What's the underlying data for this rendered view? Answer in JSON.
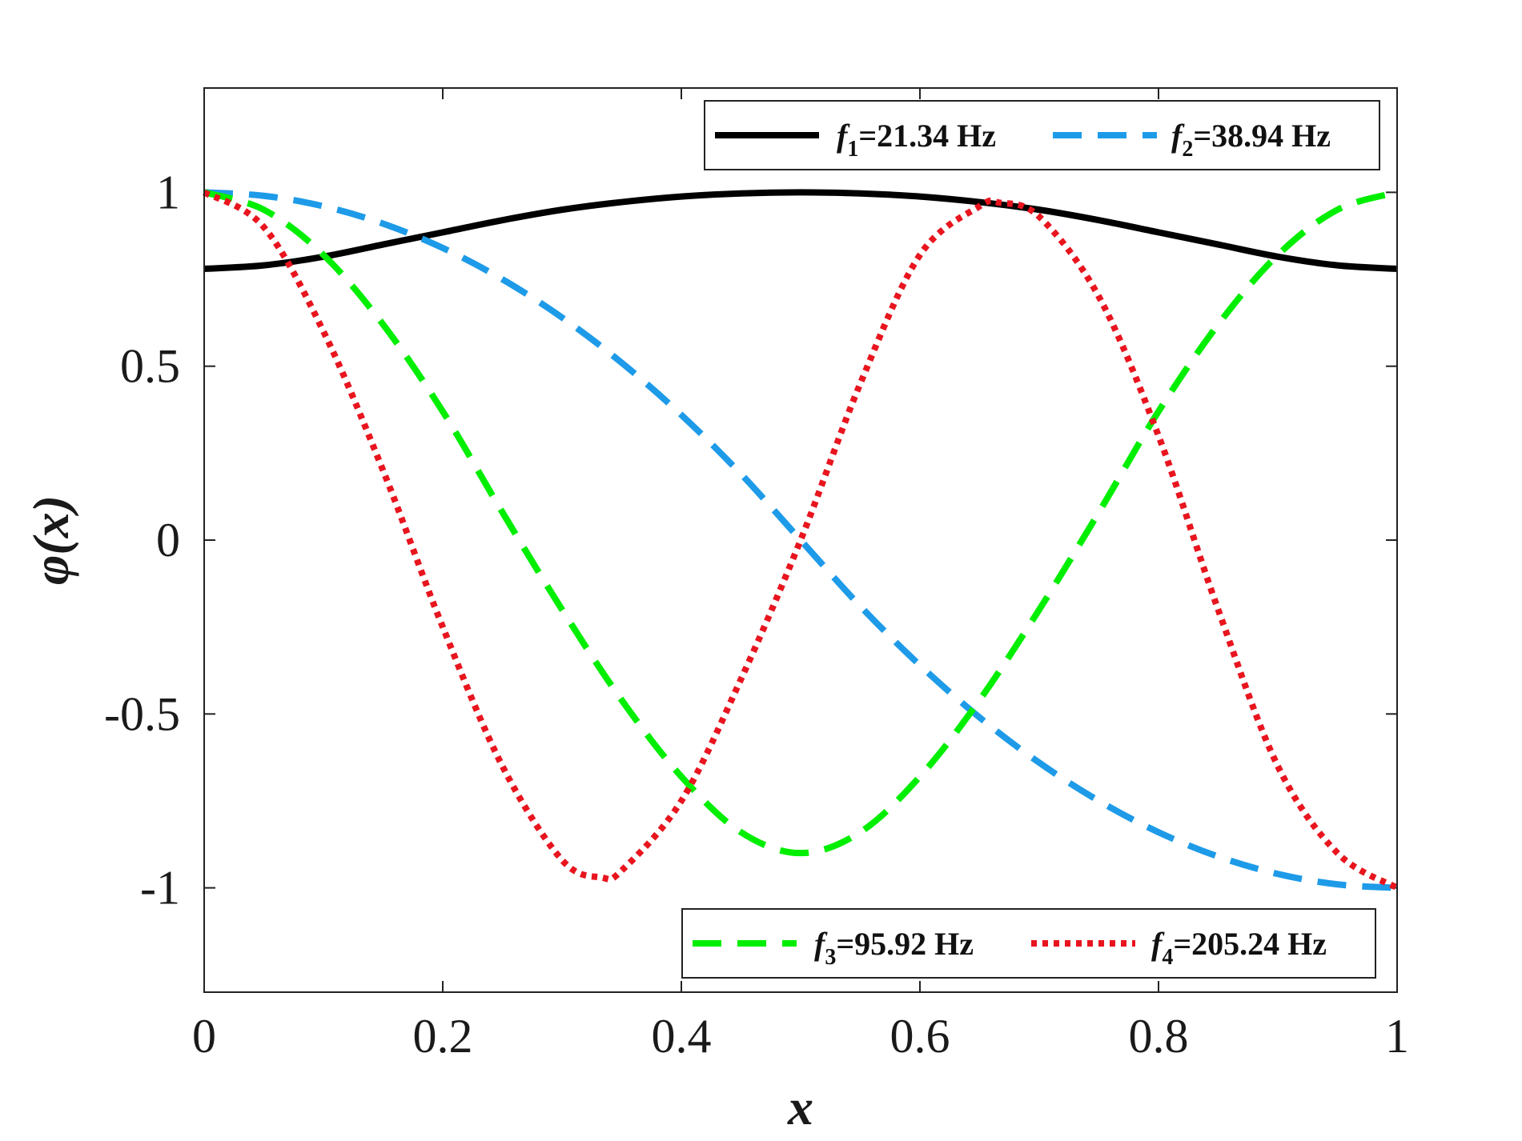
{
  "chart_data": {
    "type": "line",
    "title": "",
    "xlabel": "x",
    "ylabel": "φ(x)",
    "xlim": [
      0,
      1
    ],
    "ylim": [
      -1.3,
      1.3
    ],
    "grid": false,
    "x_ticks": [
      0,
      0.2,
      0.4,
      0.6,
      0.8,
      1
    ],
    "x_tick_labels": [
      "0",
      "0.2",
      "0.4",
      "0.6",
      "0.8",
      "1"
    ],
    "y_ticks": [
      1,
      0.5,
      0,
      -0.5,
      -1
    ],
    "y_tick_labels": [
      "1",
      "0.5",
      "0",
      "-0.5",
      "-1"
    ],
    "legends": [
      {
        "placement": "top-right",
        "entries": [
          0,
          1
        ]
      },
      {
        "placement": "bottom-right",
        "entries": [
          2,
          3
        ]
      }
    ],
    "series": [
      {
        "name": "f1=21.34 Hz",
        "label_symbol": "f",
        "label_sub": "1",
        "label_value": "=21.34 Hz",
        "style": "solid",
        "color": "#000000",
        "x": [
          0,
          0.05,
          0.1,
          0.15,
          0.2,
          0.25,
          0.3,
          0.35,
          0.4,
          0.45,
          0.5,
          0.55,
          0.6,
          0.65,
          0.7,
          0.75,
          0.8,
          0.85,
          0.9,
          0.95,
          1
        ],
        "y": [
          0.78,
          0.79,
          0.815,
          0.85,
          0.885,
          0.92,
          0.95,
          0.972,
          0.988,
          0.997,
          1.0,
          0.997,
          0.988,
          0.972,
          0.95,
          0.92,
          0.885,
          0.85,
          0.815,
          0.79,
          0.78
        ]
      },
      {
        "name": "f2=38.94 Hz",
        "label_symbol": "f",
        "label_sub": "2",
        "label_value": "=38.94 Hz",
        "style": "dashed",
        "color": "#1e9be8",
        "x": [
          0,
          0.05,
          0.1,
          0.15,
          0.2,
          0.25,
          0.3,
          0.35,
          0.4,
          0.45,
          0.5,
          0.55,
          0.6,
          0.65,
          0.7,
          0.75,
          0.8,
          0.85,
          0.9,
          0.95,
          1
        ],
        "y": [
          1.0,
          0.99,
          0.96,
          0.91,
          0.84,
          0.75,
          0.64,
          0.51,
          0.36,
          0.19,
          0.0,
          -0.19,
          -0.36,
          -0.51,
          -0.64,
          -0.75,
          -0.84,
          -0.91,
          -0.96,
          -0.99,
          -1.0
        ]
      },
      {
        "name": "f3=95.92 Hz",
        "label_symbol": "f",
        "label_sub": "3",
        "label_value": "=95.92 Hz",
        "style": "dashed",
        "color": "#00ee00",
        "x": [
          0,
          0.05,
          0.1,
          0.15,
          0.2,
          0.25,
          0.3,
          0.35,
          0.4,
          0.45,
          0.5,
          0.55,
          0.6,
          0.65,
          0.7,
          0.75,
          0.8,
          0.85,
          0.9,
          0.95,
          1
        ],
        "y": [
          1.0,
          0.95,
          0.82,
          0.62,
          0.37,
          0.08,
          -0.2,
          -0.46,
          -0.68,
          -0.84,
          -0.9,
          -0.84,
          -0.68,
          -0.46,
          -0.2,
          0.08,
          0.37,
          0.62,
          0.82,
          0.95,
          1.0
        ]
      },
      {
        "name": "f4=205.24 Hz",
        "label_symbol": "f",
        "label_sub": "4",
        "label_value": "=205.24 Hz",
        "style": "dotted",
        "color": "#e8141e",
        "x": [
          0,
          0.05,
          0.1,
          0.15,
          0.2,
          0.25,
          0.3,
          0.333,
          0.35,
          0.4,
          0.45,
          0.5,
          0.55,
          0.6,
          0.65,
          0.667,
          0.7,
          0.75,
          0.8,
          0.85,
          0.9,
          0.95,
          1
        ],
        "y": [
          1.0,
          0.9,
          0.6,
          0.2,
          -0.25,
          -0.65,
          -0.92,
          -0.97,
          -0.95,
          -0.75,
          -0.4,
          0.0,
          0.45,
          0.82,
          0.96,
          0.97,
          0.93,
          0.7,
          0.3,
          -0.2,
          -0.65,
          -0.9,
          -1.0
        ]
      }
    ]
  }
}
